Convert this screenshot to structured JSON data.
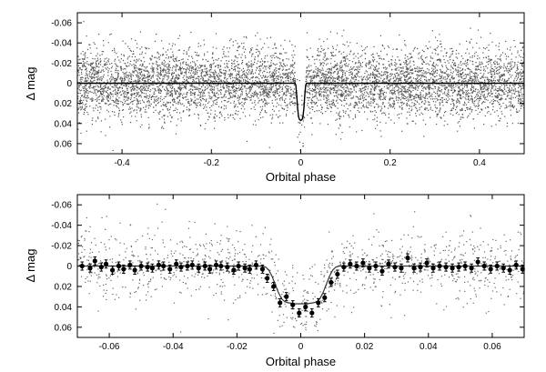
{
  "chart_data": [
    {
      "type": "scatter",
      "panel": "top",
      "xlabel": "Orbital phase",
      "ylabel": "Δ mag",
      "xlim": [
        -0.5,
        0.5
      ],
      "ylim": [
        -0.07,
        0.07
      ],
      "y_inverted": true,
      "xticks": [
        -0.4,
        -0.2,
        0.0,
        0.2,
        0.4
      ],
      "xtick_labels": [
        "-0.4",
        "-0.2",
        "0",
        "0.2",
        "0.4"
      ],
      "yticks": [
        -0.06,
        -0.04,
        -0.02,
        0,
        0.02,
        0.04,
        0.06
      ],
      "ytick_labels": [
        "-0.06",
        "-0.04",
        "-0.02",
        "0",
        "0.02",
        "0.04",
        "0.06"
      ],
      "grid": false,
      "series": [
        {
          "kind": "scatter",
          "color": "#555555",
          "points_description_count": 9000,
          "x_range": [
            -0.5,
            0.5
          ],
          "y_center": 0.0,
          "y_scatter_sigma": 0.02
        },
        {
          "kind": "line",
          "color": "#000000",
          "x": [
            -0.5,
            -0.013,
            -0.011,
            -0.009,
            -0.007,
            -0.005,
            -0.003,
            0.0,
            0.003,
            0.005,
            0.007,
            0.009,
            0.011,
            0.013,
            0.5
          ],
          "y": [
            0,
            0,
            0.002,
            0.012,
            0.025,
            0.033,
            0.036,
            0.037,
            0.036,
            0.033,
            0.025,
            0.012,
            0.002,
            0,
            0
          ]
        }
      ]
    },
    {
      "type": "scatter",
      "panel": "bottom",
      "xlabel": "Orbital phase",
      "ylabel": "Δ mag",
      "xlim": [
        -0.07,
        0.07
      ],
      "ylim": [
        -0.07,
        0.07
      ],
      "y_inverted": true,
      "xticks": [
        -0.06,
        -0.04,
        -0.02,
        0.0,
        0.02,
        0.04,
        0.06
      ],
      "xtick_labels": [
        "-0.06",
        "-0.04",
        "-0.02",
        "0",
        "0.02",
        "0.04",
        "0.06"
      ],
      "yticks": [
        -0.06,
        -0.04,
        -0.02,
        0,
        0.02,
        0.04,
        0.06
      ],
      "ytick_labels": [
        "-0.06",
        "-0.04",
        "-0.02",
        "0",
        "0.02",
        "0.04",
        "0.06"
      ],
      "grid": false,
      "series": [
        {
          "kind": "scatter",
          "color": "#666666",
          "points_description_count": 1100,
          "x_range": [
            -0.07,
            0.07
          ],
          "y_scatter_sigma": 0.02
        },
        {
          "kind": "binned_errorbar",
          "color": "#000000",
          "x": [
            -0.0685,
            -0.066,
            -0.0645,
            -0.0625,
            -0.061,
            -0.059,
            -0.057,
            -0.0555,
            -0.0535,
            -0.052,
            -0.05,
            -0.048,
            -0.0465,
            -0.0445,
            -0.043,
            -0.041,
            -0.039,
            -0.0375,
            -0.0355,
            -0.034,
            -0.032,
            -0.03,
            -0.0285,
            -0.0265,
            -0.025,
            -0.023,
            -0.021,
            -0.0195,
            -0.0175,
            -0.016,
            -0.014,
            -0.012,
            -0.0105,
            -0.0085,
            -0.0065,
            -0.0045,
            -0.0025,
            -0.0005,
            0.0015,
            0.0035,
            0.0055,
            0.0075,
            0.0095,
            0.0115,
            0.0135,
            0.0155,
            0.0175,
            0.0195,
            0.0215,
            0.0235,
            0.0255,
            0.0275,
            0.0295,
            0.0315,
            0.0335,
            0.0355,
            0.0375,
            0.0395,
            0.0415,
            0.0435,
            0.0455,
            0.0475,
            0.0495,
            0.0515,
            0.0535,
            0.0555,
            0.0575,
            0.0595,
            0.0615,
            0.0635,
            0.0655,
            0.0675,
            0.0695
          ],
          "y": [
            0.0,
            0.002,
            -0.005,
            0.001,
            -0.002,
            0.004,
            0.0,
            0.003,
            -0.001,
            0.004,
            0.0,
            0.001,
            0.002,
            -0.001,
            0.0,
            0.003,
            -0.002,
            0.001,
            0.0,
            -0.001,
            0.002,
            0.0,
            0.003,
            -0.001,
            0.0,
            0.001,
            0.004,
            0.0,
            0.002,
            0.003,
            -0.001,
            0.003,
            0.012,
            0.02,
            0.036,
            0.03,
            0.038,
            0.046,
            0.04,
            0.046,
            0.036,
            0.031,
            0.016,
            0.008,
            0.001,
            -0.002,
            0.0,
            -0.003,
            0.002,
            0.0,
            0.005,
            -0.002,
            0.001,
            0.002,
            -0.008,
            0.002,
            0.001,
            -0.003,
            0.002,
            0.0,
            0.001,
            0.002,
            0.001,
            0.0,
            0.002,
            -0.004,
            0.0,
            0.003,
            0.0,
            0.002,
            0.004,
            -0.001,
            0.003
          ],
          "yerr": 0.004
        },
        {
          "kind": "line",
          "color": "#333333",
          "x": [
            -0.07,
            -0.012,
            -0.011,
            -0.01,
            -0.009,
            -0.008,
            -0.007,
            -0.006,
            -0.005,
            -0.004,
            -0.002,
            0.0,
            0.002,
            0.004,
            0.005,
            0.006,
            0.007,
            0.008,
            0.009,
            0.01,
            0.011,
            0.012,
            0.07
          ],
          "y": [
            0,
            0,
            0.001,
            0.004,
            0.01,
            0.018,
            0.026,
            0.032,
            0.035,
            0.036,
            0.037,
            0.037,
            0.037,
            0.036,
            0.035,
            0.032,
            0.026,
            0.018,
            0.01,
            0.004,
            0.001,
            0,
            0
          ]
        }
      ]
    }
  ]
}
